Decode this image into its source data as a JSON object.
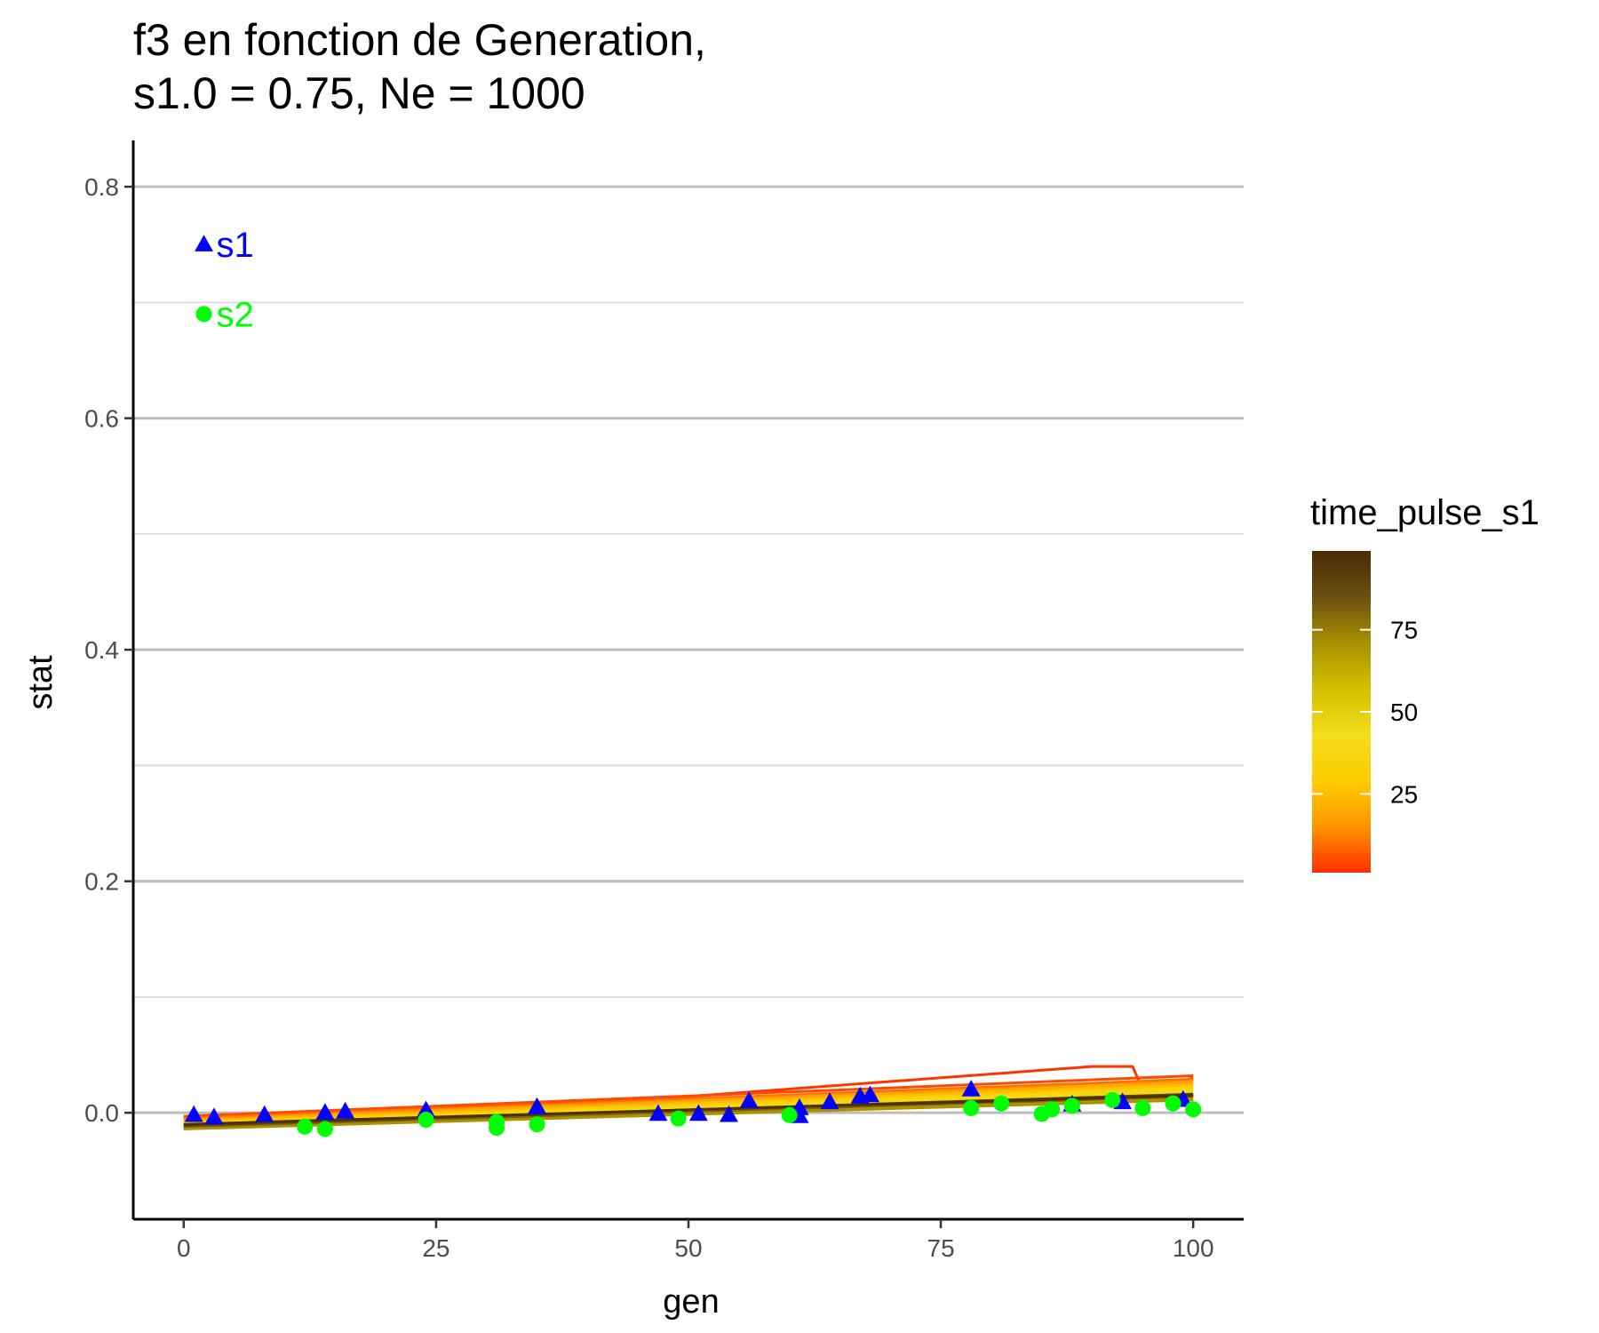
{
  "chart_data": {
    "type": "line",
    "title_lines": [
      "f3 en fonction de Generation,",
      "s1.0 = 0.75, Ne = 1000"
    ],
    "xlabel": "gen",
    "ylabel": "stat",
    "xlim": [
      -5,
      105
    ],
    "ylim": [
      -0.092,
      0.84
    ],
    "x_ticks": [
      0,
      25,
      50,
      75,
      100
    ],
    "x_tick_labels": [
      "0",
      "25",
      "50",
      "75",
      "100"
    ],
    "y_ticks": [
      0.0,
      0.2,
      0.4,
      0.6,
      0.8
    ],
    "y_tick_labels": [
      "0.0",
      "0.2",
      "0.4",
      "0.6",
      "0.8"
    ],
    "y_minor_ticks": [
      0.1,
      0.3,
      0.5,
      0.7
    ],
    "grid": "horizontal",
    "legend": {
      "title": "time_pulse_s1",
      "placement": "right",
      "range": [
        1,
        99
      ],
      "tick_values": [
        25,
        50,
        75
      ],
      "tick_labels": [
        "25",
        "50",
        "75"
      ],
      "colors": [
        "#ff2e00",
        "#ff9500",
        "#ffcc00",
        "#f2dd1c",
        "#d4c000",
        "#a89000",
        "#6b4f10",
        "#4a2a05"
      ]
    },
    "annotations": [
      {
        "label": "s1",
        "marker": "triangle",
        "color": "#0000ff",
        "x": 2,
        "y": 0.75
      },
      {
        "label": "s2",
        "marker": "circle",
        "color": "#00ff00",
        "x": 2,
        "y": 0.69
      }
    ],
    "lines": [
      {
        "time_pulse_s1": 2,
        "points": [
          [
            0,
            -0.004
          ],
          [
            50,
            0.014
          ],
          [
            90,
            0.04
          ],
          [
            94,
            0.04
          ],
          [
            95,
            0.02
          ],
          [
            100,
            0.03
          ]
        ]
      },
      {
        "time_pulse_s1": 5,
        "points": [
          [
            0,
            -0.003
          ],
          [
            100,
            0.032
          ]
        ]
      },
      {
        "time_pulse_s1": 10,
        "points": [
          [
            0,
            -0.005
          ],
          [
            100,
            0.029
          ]
        ]
      },
      {
        "time_pulse_s1": 15,
        "points": [
          [
            0,
            -0.006
          ],
          [
            100,
            0.027
          ]
        ]
      },
      {
        "time_pulse_s1": 20,
        "points": [
          [
            0,
            -0.007
          ],
          [
            100,
            0.026
          ]
        ]
      },
      {
        "time_pulse_s1": 25,
        "points": [
          [
            0,
            -0.008
          ],
          [
            100,
            0.024
          ]
        ]
      },
      {
        "time_pulse_s1": 30,
        "points": [
          [
            0,
            -0.009
          ],
          [
            100,
            0.022
          ]
        ]
      },
      {
        "time_pulse_s1": 35,
        "points": [
          [
            0,
            -0.01
          ],
          [
            100,
            0.021
          ]
        ]
      },
      {
        "time_pulse_s1": 40,
        "points": [
          [
            0,
            -0.011
          ],
          [
            100,
            0.019
          ]
        ]
      },
      {
        "time_pulse_s1": 45,
        "points": [
          [
            0,
            -0.012
          ],
          [
            100,
            0.018
          ]
        ]
      },
      {
        "time_pulse_s1": 50,
        "points": [
          [
            0,
            -0.012
          ],
          [
            100,
            0.016
          ]
        ]
      },
      {
        "time_pulse_s1": 55,
        "points": [
          [
            0,
            -0.013
          ],
          [
            100,
            0.015
          ]
        ]
      },
      {
        "time_pulse_s1": 60,
        "points": [
          [
            0,
            -0.013
          ],
          [
            100,
            0.013
          ]
        ]
      },
      {
        "time_pulse_s1": 65,
        "points": [
          [
            0,
            -0.014
          ],
          [
            100,
            0.012
          ]
        ]
      },
      {
        "time_pulse_s1": 70,
        "points": [
          [
            0,
            -0.014
          ],
          [
            100,
            0.011
          ]
        ]
      },
      {
        "time_pulse_s1": 80,
        "points": [
          [
            0,
            -0.012
          ],
          [
            100,
            0.014
          ]
        ]
      },
      {
        "time_pulse_s1": 90,
        "points": [
          [
            0,
            -0.011
          ],
          [
            100,
            0.016
          ]
        ]
      },
      {
        "time_pulse_s1": 97,
        "points": [
          [
            0,
            -0.01
          ],
          [
            100,
            0.015
          ]
        ]
      }
    ],
    "series": [
      {
        "name": "s1",
        "marker": "triangle",
        "color": "#0000ff",
        "points": [
          [
            1,
            -0.002
          ],
          [
            3,
            -0.004
          ],
          [
            8,
            -0.002
          ],
          [
            14,
            0.0
          ],
          [
            16,
            0.001
          ],
          [
            24,
            0.002
          ],
          [
            35,
            0.005
          ],
          [
            47,
            -0.001
          ],
          [
            51,
            -0.001
          ],
          [
            54,
            -0.002
          ],
          [
            56,
            0.01
          ],
          [
            61,
            0.004
          ],
          [
            61,
            -0.003
          ],
          [
            64,
            0.009
          ],
          [
            67,
            0.014
          ],
          [
            68,
            0.015
          ],
          [
            78,
            0.02
          ],
          [
            88,
            0.007
          ],
          [
            93,
            0.009
          ],
          [
            99,
            0.011
          ]
        ]
      },
      {
        "name": "s2",
        "marker": "circle",
        "color": "#00ff00",
        "points": [
          [
            12,
            -0.012
          ],
          [
            14,
            -0.014
          ],
          [
            24,
            -0.006
          ],
          [
            31,
            -0.008
          ],
          [
            31,
            -0.013
          ],
          [
            35,
            -0.01
          ],
          [
            49,
            -0.005
          ],
          [
            60,
            -0.002
          ],
          [
            78,
            0.004
          ],
          [
            81,
            0.008
          ],
          [
            85,
            -0.001
          ],
          [
            86,
            0.003
          ],
          [
            88,
            0.006
          ],
          [
            92,
            0.011
          ],
          [
            95,
            0.004
          ],
          [
            98,
            0.008
          ],
          [
            100,
            0.003
          ]
        ]
      }
    ]
  }
}
